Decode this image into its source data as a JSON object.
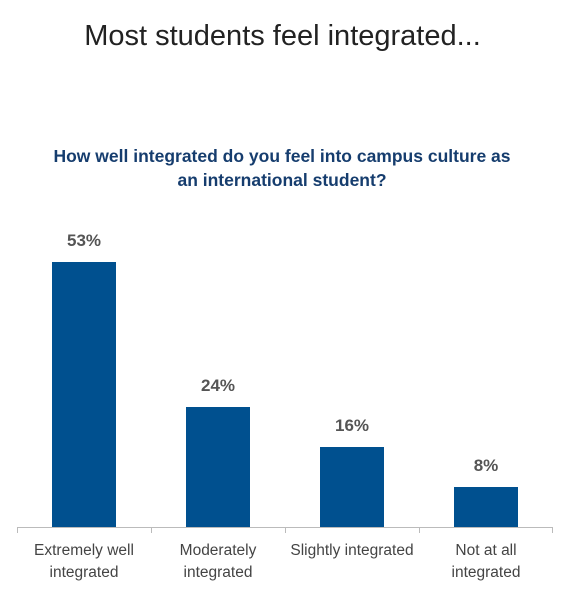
{
  "chart_data": {
    "type": "bar",
    "title": "Most students feel integrated...",
    "subtitle": "How well integrated do you feel into campus culture as an international student?",
    "categories": [
      "Extremely well integrated",
      "Moderately integrated",
      "Slightly integrated",
      "Not at all integrated"
    ],
    "values": [
      53,
      24,
      16,
      8
    ],
    "value_labels": [
      "53%",
      "24%",
      "16%",
      "8%"
    ],
    "color": "#00508f"
  }
}
